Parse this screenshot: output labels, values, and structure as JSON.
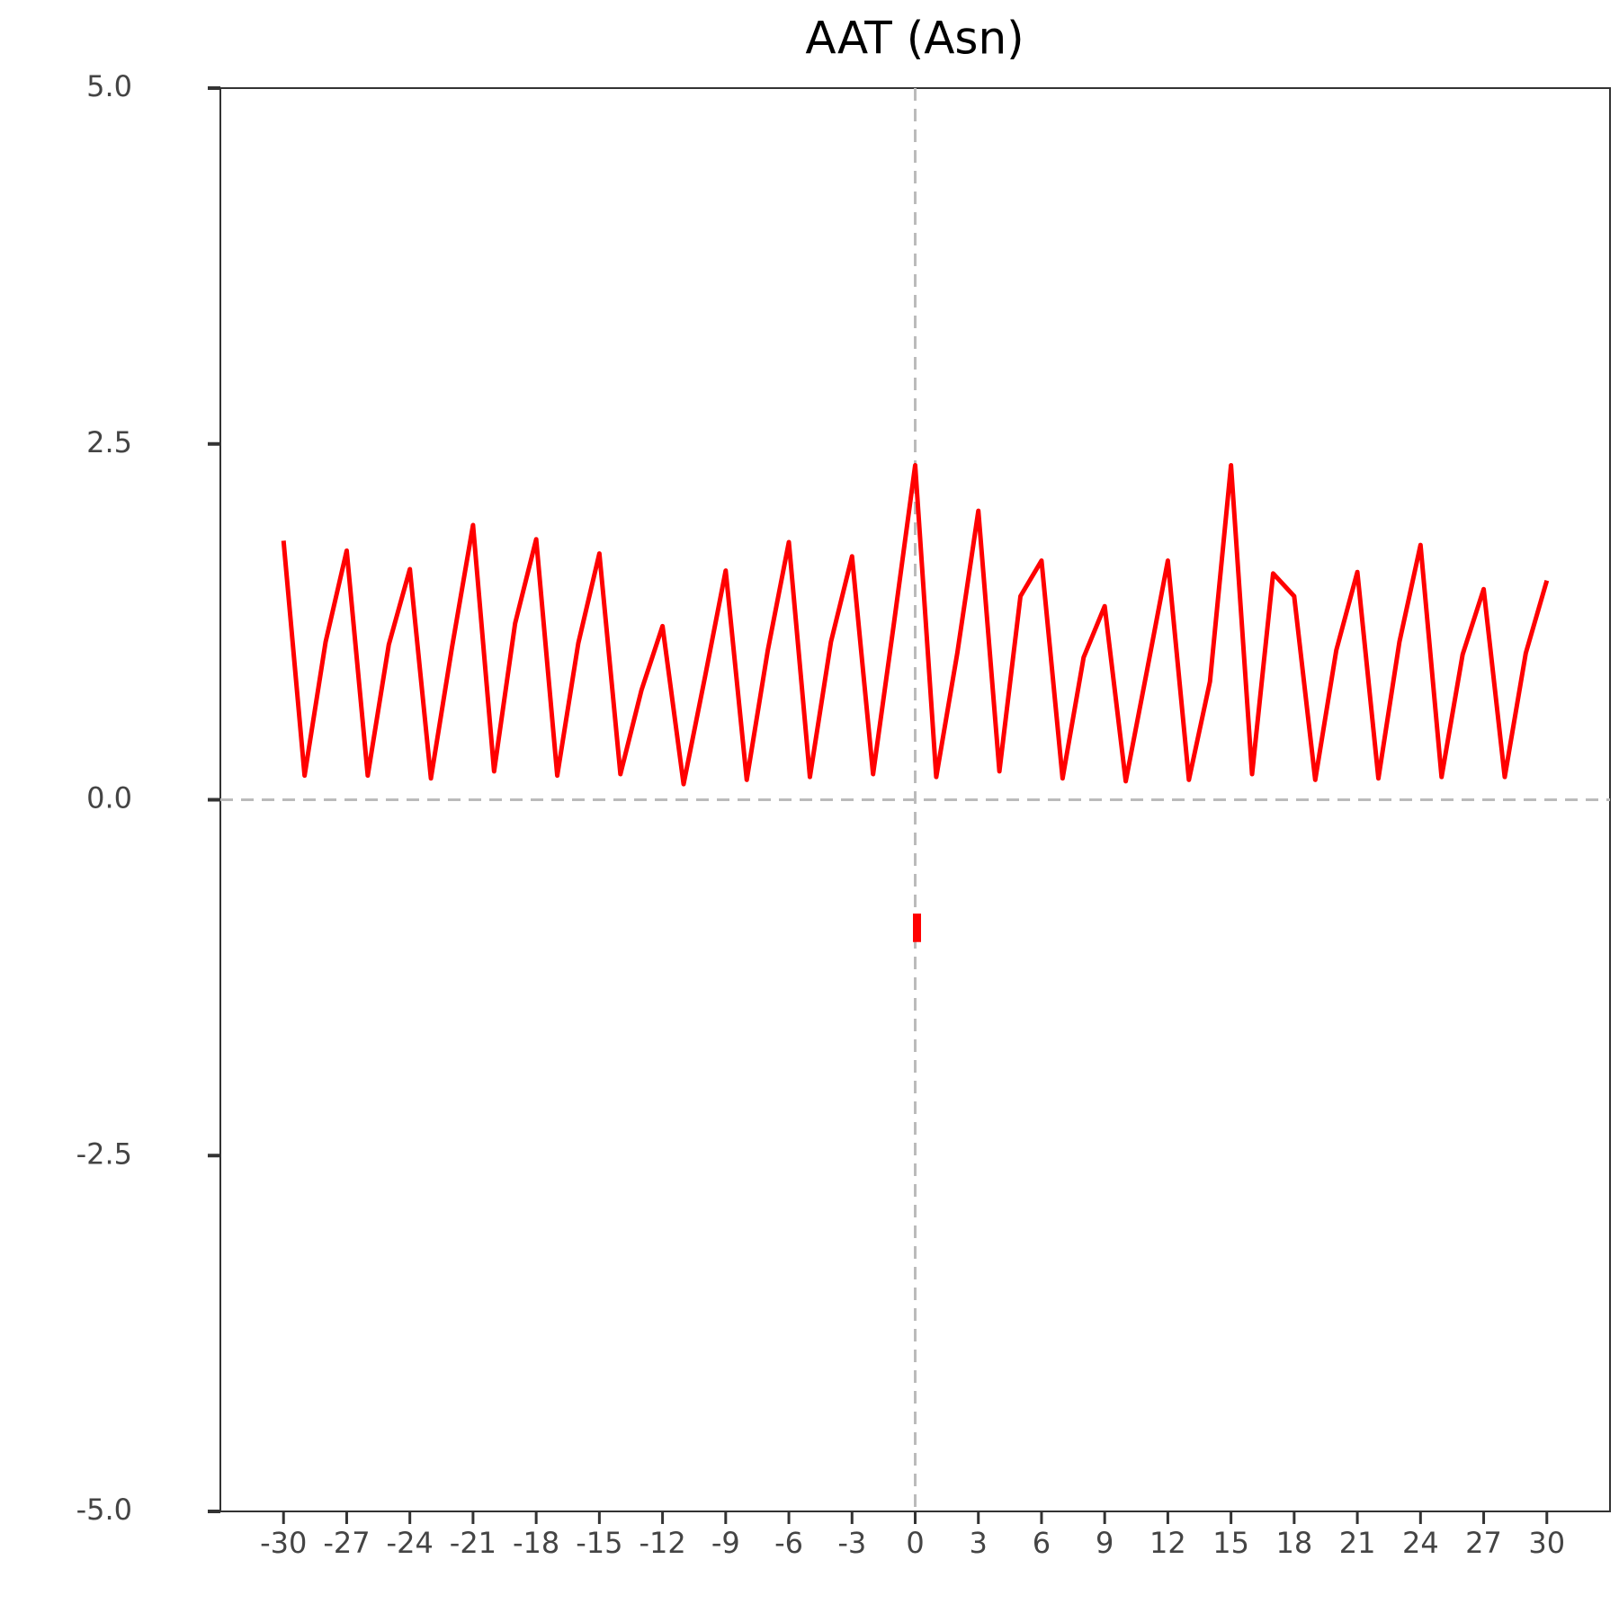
{
  "chart_data": {
    "type": "line",
    "title": "AAT (Asn)",
    "x": [
      -30,
      -29,
      -28,
      -27,
      -26,
      -25,
      -24,
      -23,
      -22,
      -21,
      -20,
      -19,
      -18,
      -17,
      -16,
      -15,
      -14,
      -13,
      -12,
      -11,
      -10,
      -9,
      -8,
      -7,
      -6,
      -5,
      -4,
      -3,
      -2,
      -1,
      0,
      1,
      2,
      3,
      4,
      5,
      6,
      7,
      8,
      9,
      10,
      11,
      12,
      13,
      14,
      15,
      16,
      17,
      18,
      19,
      20,
      21,
      22,
      23,
      24,
      25,
      26,
      27,
      28,
      29,
      30
    ],
    "series": [
      {
        "color": "#ff0000",
        "values": [
          1.82,
          0.17,
          1.11,
          1.75,
          0.17,
          1.09,
          1.62,
          0.15,
          1.07,
          1.93,
          0.2,
          1.24,
          1.83,
          0.17,
          1.1,
          1.73,
          0.18,
          0.77,
          1.22,
          0.11,
          0.85,
          1.61,
          0.14,
          1.05,
          1.81,
          0.16,
          1.11,
          1.71,
          0.18,
          1.25,
          2.35,
          0.16,
          1.03,
          2.03,
          0.2,
          1.43,
          1.68,
          0.15,
          1.0,
          1.36,
          0.13,
          0.9,
          1.68,
          0.14,
          0.83,
          2.35,
          0.18,
          1.59,
          1.43,
          0.14,
          1.05,
          1.6,
          0.15,
          1.11,
          1.79,
          0.16,
          1.02,
          1.48,
          0.16,
          1.03,
          1.54
        ]
      }
    ],
    "marker": {
      "x": 0,
      "values": [
        -0.8,
        -1.0
      ],
      "color": "#ff0000"
    },
    "xlim": [
      -33,
      33
    ],
    "ylim": [
      -5,
      5
    ],
    "xticks": [
      -30,
      -27,
      -24,
      -21,
      -18,
      -15,
      -12,
      -9,
      -6,
      -3,
      0,
      3,
      6,
      9,
      12,
      15,
      18,
      21,
      24,
      27,
      30
    ],
    "yticks": [
      {
        "value": -5,
        "label": "-5.0"
      },
      {
        "value": -2.5,
        "label": "-2.5"
      },
      {
        "value": 0,
        "label": "0.0"
      },
      {
        "value": 2.5,
        "label": "2.5"
      },
      {
        "value": 5,
        "label": "5.0"
      }
    ],
    "hlines": [
      0
    ],
    "vlines": [
      0
    ]
  }
}
